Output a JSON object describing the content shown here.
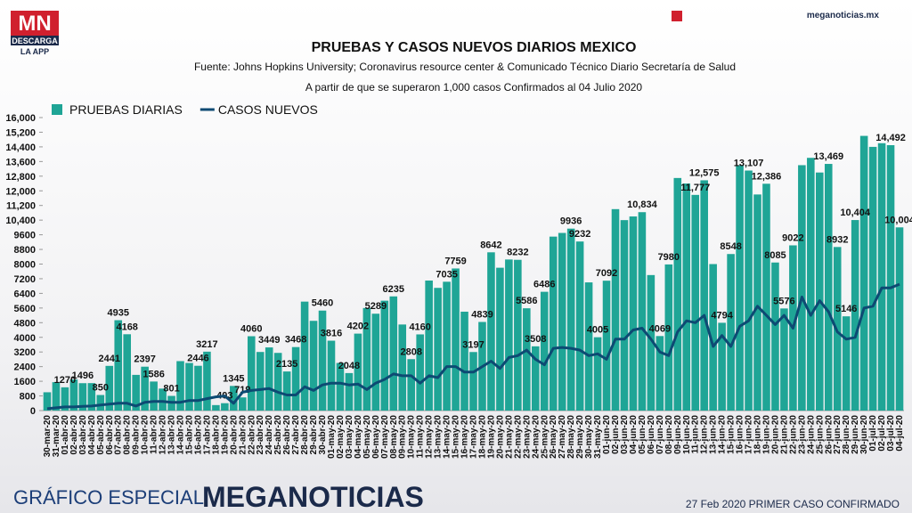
{
  "header": {
    "logo": "MN",
    "logo_sub": "DESCARGA",
    "logo_sub2": "LA APP",
    "site": "meganoticias.mx"
  },
  "footer": {
    "left": "GRÁFICO ESPECIAL",
    "brand": "MEGANOTICIAS",
    "right": "27 Feb 2020 PRIMER CASO CONFIRMADO"
  },
  "chart_data": {
    "type": "bar",
    "title": "PRUEBAS Y CASOS NUEVOS DIARIOS MEXICO",
    "subtitle": "Fuente: Johns Hopkins University; Coronavirus resource center & Comunicado Técnico Diario Secretaría de Salud",
    "annotation": "A partir de que se superaron 1,000 casos Confirmados al 04 Julio 2020",
    "legend": "top-left",
    "categories": [
      "30-mar-20",
      "31-mar-20",
      "01-abr-20",
      "02-abr-20",
      "03-abr-20",
      "04-abr-20",
      "05-abr-20",
      "06-abr-20",
      "07-abr-20",
      "08-abr-20",
      "09-abr-20",
      "10-abr-20",
      "11-abr-20",
      "12-abr-20",
      "13-abr-20",
      "14-abr-20",
      "15-abr-20",
      "16-abr-20",
      "17-abr-20",
      "18-abr-20",
      "19-abr-20",
      "20-abr-20",
      "21-abr-20",
      "22-abr-20",
      "23-abr-20",
      "24-abr-20",
      "25-abr-20",
      "26-abr-20",
      "27-abr-20",
      "28-abr-20",
      "29-abr-20",
      "30-abr-20",
      "01-may-20",
      "02-may-20",
      "03-may-20",
      "04-may-20",
      "05-may-20",
      "06-may-20",
      "07-may-20",
      "08-may-20",
      "09-may-20",
      "10-may-20",
      "11-may-20",
      "12-may-20",
      "13-may-20",
      "14-may-20",
      "15-may-20",
      "16-may-20",
      "17-may-20",
      "18-may-20",
      "19-may-20",
      "20-may-20",
      "21-may-20",
      "22-may-20",
      "23-may-20",
      "24-may-20",
      "25-may-20",
      "26-may-20",
      "27-may-20",
      "28-may-20",
      "29-may-20",
      "30-may-20",
      "31-may-20",
      "01-jun-20",
      "02-jun-20",
      "03-jun-20",
      "04-jun-20",
      "05-jun-20",
      "06-jun-20",
      "07-jun-20",
      "08-jun-20",
      "09-jun-20",
      "10-jun-20",
      "11-jun-20",
      "12-jun-20",
      "13-jun-20",
      "14-jun-20",
      "15-jun-20",
      "16-jun-20",
      "17-jun-20",
      "18-jun-20",
      "19-jun-20",
      "20-jun-20",
      "21-jun-20",
      "22-jun-20",
      "23-jun-20",
      "24-jun-20",
      "25-jun-20",
      "26-jun-20",
      "27-jun-20",
      "28-jun-20",
      "29-jun-20",
      "30-jun-20",
      "01-jul-20",
      "02-jul-20",
      "03-jul-20",
      "04-jul-20"
    ],
    "series": [
      {
        "name": "PRUEBAS DIARIAS",
        "type": "bar",
        "color": "#1fa596",
        "values": [
          1000,
          1550,
          1270,
          1700,
          1496,
          1500,
          850,
          2441,
          4935,
          4168,
          1950,
          2397,
          1586,
          1200,
          801,
          2700,
          2600,
          2446,
          3217,
          300,
          403,
          1345,
          719,
          4060,
          3200,
          3449,
          3150,
          2135,
          3468,
          5950,
          4900,
          5460,
          3816,
          2600,
          2048,
          4202,
          5600,
          5289,
          6000,
          6235,
          4700,
          2808,
          4160,
          7100,
          6700,
          7035,
          7759,
          5400,
          3197,
          4839,
          8642,
          7800,
          8250,
          8232,
          5586,
          3508,
          6486,
          9500,
          9700,
          9936,
          9232,
          7000,
          4005,
          7092,
          11000,
          10400,
          10600,
          10834,
          7400,
          4069,
          7980,
          12700,
          12400,
          11777,
          12575,
          8000,
          4794,
          8548,
          13400,
          13107,
          11800,
          12386,
          8085,
          5576,
          9022,
          13400,
          13800,
          13000,
          13469,
          8932,
          5146,
          10404,
          15000,
          14400,
          14600,
          14492,
          10004
        ],
        "value_labels": [
          null,
          null,
          "1270",
          null,
          "1496",
          null,
          "850",
          "2441",
          "4935",
          "4168",
          null,
          "2397",
          "1586",
          null,
          "801",
          null,
          null,
          "2446",
          "3217",
          null,
          "403",
          "1345",
          "719",
          "4060",
          null,
          "3449",
          null,
          "2135",
          "3468",
          null,
          null,
          "5460",
          "3816",
          null,
          "2048",
          "4202",
          null,
          "5289",
          null,
          "6235",
          null,
          "2808",
          "4160",
          null,
          null,
          "7035",
          "7759",
          null,
          "3197",
          "4839",
          "8642",
          null,
          null,
          "8232",
          "5586",
          "3508",
          "6486",
          null,
          null,
          "9936",
          "9232",
          null,
          "4005",
          "7092",
          null,
          null,
          null,
          "10,834",
          null,
          "4069",
          "7980",
          null,
          null,
          "11,777",
          "12,575",
          null,
          "4794",
          "8548",
          null,
          "13,107",
          null,
          "12,386",
          "8085",
          "5576",
          "9022",
          null,
          null,
          null,
          "13,469",
          "8932",
          "5146",
          "10,404",
          null,
          null,
          null,
          "14,492",
          "10,004"
        ]
      },
      {
        "name": "CASOS NUEVOS",
        "type": "line",
        "color": "#0d4a73",
        "values": [
          100,
          150,
          200,
          200,
          230,
          250,
          300,
          350,
          400,
          400,
          250,
          450,
          500,
          500,
          450,
          450,
          550,
          550,
          650,
          750,
          800,
          400,
          1000,
          1100,
          1150,
          1200,
          1000,
          850,
          850,
          1300,
          1100,
          1400,
          1500,
          1500,
          1400,
          1450,
          1150,
          1500,
          1700,
          2000,
          1900,
          1900,
          1500,
          1900,
          1800,
          2400,
          2400,
          2100,
          2100,
          2400,
          2700,
          2300,
          2900,
          3000,
          3300,
          2800,
          2500,
          3400,
          3450,
          3400,
          3300,
          3000,
          3100,
          2800,
          3900,
          3900,
          4400,
          4500,
          3900,
          3200,
          3000,
          4300,
          4900,
          4800,
          5200,
          3500,
          4100,
          3500,
          4600,
          4900,
          5700,
          5200,
          4700,
          5200,
          4500,
          6200,
          5200,
          6000,
          5400,
          4300,
          3900,
          4000,
          5600,
          5700,
          6700,
          6700,
          6900
        ]
      }
    ],
    "ylim": [
      0,
      16000
    ],
    "yticks": [
      0,
      800,
      1600,
      2400,
      3200,
      4000,
      4800,
      5600,
      6400,
      7200,
      8000,
      8800,
      9600,
      {
        "value": 10400,
        "label": "10,400"
      },
      {
        "value": 11200,
        "label": "11,200"
      },
      {
        "value": 12000,
        "label": "12,000"
      },
      {
        "value": 12800,
        "label": "12,800"
      },
      {
        "value": 13600,
        "label": "13,600"
      },
      {
        "value": 14400,
        "label": "14,400"
      },
      {
        "value": 15200,
        "label": "15,200"
      },
      {
        "value": 16000,
        "label": "16,000"
      }
    ],
    "grid": false
  }
}
